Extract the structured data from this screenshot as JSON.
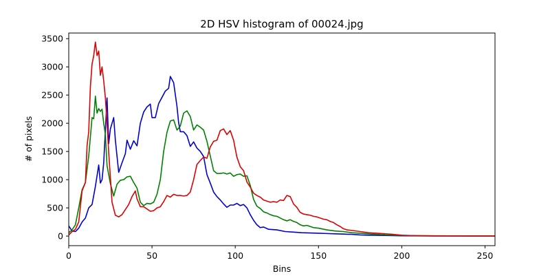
{
  "chart_data": {
    "type": "line",
    "title": "2D HSV histogram of 00024.jpg",
    "xlabel": "Bins",
    "ylabel": "# of pixels",
    "xlim": [
      0,
      256
    ],
    "ylim": [
      -170,
      3600
    ],
    "x_ticks": [
      0,
      50,
      100,
      150,
      200,
      250
    ],
    "y_ticks": [
      0,
      500,
      1000,
      1500,
      2000,
      2500,
      3000,
      3500
    ],
    "grid": false,
    "legend": "none",
    "series": [
      {
        "color": "#0000cc",
        "points": [
          [
            0,
            180
          ],
          [
            2,
            90
          ],
          [
            4,
            80
          ],
          [
            6,
            140
          ],
          [
            8,
            250
          ],
          [
            10,
            320
          ],
          [
            12,
            500
          ],
          [
            14,
            560
          ],
          [
            16,
            880
          ],
          [
            18,
            1260
          ],
          [
            19,
            940
          ],
          [
            20,
            1000
          ],
          [
            21,
            1300
          ],
          [
            23,
            2450
          ],
          [
            24,
            1640
          ],
          [
            25,
            1900
          ],
          [
            27,
            2100
          ],
          [
            28,
            1700
          ],
          [
            30,
            1130
          ],
          [
            32,
            1300
          ],
          [
            34,
            1460
          ],
          [
            35,
            1700
          ],
          [
            37,
            1540
          ],
          [
            39,
            1690
          ],
          [
            41,
            1600
          ],
          [
            43,
            2000
          ],
          [
            45,
            2200
          ],
          [
            47,
            2290
          ],
          [
            49,
            2340
          ],
          [
            50,
            2100
          ],
          [
            52,
            2100
          ],
          [
            54,
            2350
          ],
          [
            56,
            2460
          ],
          [
            58,
            2570
          ],
          [
            60,
            2620
          ],
          [
            61,
            2830
          ],
          [
            63,
            2720
          ],
          [
            65,
            2300
          ],
          [
            66,
            2010
          ],
          [
            67,
            1850
          ],
          [
            69,
            1850
          ],
          [
            71,
            1780
          ],
          [
            73,
            1590
          ],
          [
            75,
            1670
          ],
          [
            77,
            1560
          ],
          [
            79,
            1500
          ],
          [
            81,
            1410
          ],
          [
            83,
            1090
          ],
          [
            85,
            940
          ],
          [
            87,
            780
          ],
          [
            89,
            700
          ],
          [
            91,
            640
          ],
          [
            93,
            570
          ],
          [
            95,
            510
          ],
          [
            97,
            550
          ],
          [
            99,
            550
          ],
          [
            101,
            580
          ],
          [
            103,
            540
          ],
          [
            105,
            560
          ],
          [
            107,
            500
          ],
          [
            109,
            380
          ],
          [
            111,
            280
          ],
          [
            113,
            200
          ],
          [
            115,
            150
          ],
          [
            117,
            160
          ],
          [
            120,
            120
          ],
          [
            125,
            110
          ],
          [
            130,
            80
          ],
          [
            135,
            70
          ],
          [
            140,
            60
          ],
          [
            145,
            55
          ],
          [
            150,
            50
          ],
          [
            155,
            45
          ],
          [
            160,
            40
          ],
          [
            165,
            35
          ],
          [
            170,
            30
          ],
          [
            175,
            20
          ],
          [
            180,
            15
          ],
          [
            190,
            10
          ],
          [
            200,
            5
          ],
          [
            210,
            3
          ],
          [
            220,
            2
          ],
          [
            230,
            1
          ],
          [
            240,
            1
          ],
          [
            256,
            1
          ]
        ]
      },
      {
        "color": "#008000",
        "points": [
          [
            0,
            60
          ],
          [
            2,
            110
          ],
          [
            4,
            200
          ],
          [
            6,
            500
          ],
          [
            8,
            820
          ],
          [
            10,
            950
          ],
          [
            12,
            1420
          ],
          [
            14,
            2100
          ],
          [
            15,
            2080
          ],
          [
            16,
            2480
          ],
          [
            17,
            2180
          ],
          [
            18,
            2260
          ],
          [
            19,
            2210
          ],
          [
            20,
            2250
          ],
          [
            21,
            2000
          ],
          [
            22,
            1800
          ],
          [
            23,
            1250
          ],
          [
            25,
            930
          ],
          [
            27,
            710
          ],
          [
            29,
            920
          ],
          [
            31,
            990
          ],
          [
            33,
            1000
          ],
          [
            35,
            1050
          ],
          [
            37,
            1060
          ],
          [
            39,
            950
          ],
          [
            41,
            850
          ],
          [
            43,
            600
          ],
          [
            45,
            540
          ],
          [
            47,
            580
          ],
          [
            49,
            570
          ],
          [
            51,
            600
          ],
          [
            53,
            740
          ],
          [
            55,
            1000
          ],
          [
            57,
            1500
          ],
          [
            59,
            1840
          ],
          [
            61,
            2040
          ],
          [
            63,
            2060
          ],
          [
            65,
            1880
          ],
          [
            67,
            1950
          ],
          [
            69,
            2180
          ],
          [
            71,
            2220
          ],
          [
            73,
            2120
          ],
          [
            75,
            1880
          ],
          [
            77,
            1970
          ],
          [
            79,
            1930
          ],
          [
            81,
            1880
          ],
          [
            83,
            1680
          ],
          [
            85,
            1420
          ],
          [
            87,
            1160
          ],
          [
            89,
            1110
          ],
          [
            91,
            1110
          ],
          [
            93,
            1120
          ],
          [
            95,
            1100
          ],
          [
            97,
            1120
          ],
          [
            99,
            1060
          ],
          [
            101,
            1090
          ],
          [
            103,
            1100
          ],
          [
            105,
            1060
          ],
          [
            107,
            1070
          ],
          [
            109,
            900
          ],
          [
            111,
            650
          ],
          [
            113,
            530
          ],
          [
            115,
            490
          ],
          [
            117,
            430
          ],
          [
            119,
            410
          ],
          [
            121,
            380
          ],
          [
            123,
            360
          ],
          [
            125,
            350
          ],
          [
            127,
            320
          ],
          [
            129,
            290
          ],
          [
            131,
            270
          ],
          [
            133,
            290
          ],
          [
            135,
            260
          ],
          [
            137,
            240
          ],
          [
            139,
            200
          ],
          [
            141,
            180
          ],
          [
            143,
            190
          ],
          [
            145,
            170
          ],
          [
            147,
            150
          ],
          [
            150,
            140
          ],
          [
            155,
            110
          ],
          [
            160,
            90
          ],
          [
            165,
            80
          ],
          [
            170,
            60
          ],
          [
            175,
            50
          ],
          [
            180,
            40
          ],
          [
            190,
            20
          ],
          [
            200,
            10
          ],
          [
            210,
            5
          ],
          [
            220,
            3
          ],
          [
            256,
            1
          ]
        ]
      },
      {
        "color": "#dd0000",
        "points": [
          [
            0,
            20
          ],
          [
            2,
            80
          ],
          [
            4,
            120
          ],
          [
            6,
            250
          ],
          [
            8,
            800
          ],
          [
            10,
            950
          ],
          [
            11,
            1600
          ],
          [
            12,
            1850
          ],
          [
            13,
            2650
          ],
          [
            14,
            3050
          ],
          [
            15,
            3200
          ],
          [
            16,
            3440
          ],
          [
            17,
            3200
          ],
          [
            18,
            3280
          ],
          [
            19,
            2850
          ],
          [
            20,
            3000
          ],
          [
            21,
            2750
          ],
          [
            22,
            2450
          ],
          [
            23,
            2000
          ],
          [
            24,
            1480
          ],
          [
            26,
            600
          ],
          [
            28,
            370
          ],
          [
            30,
            340
          ],
          [
            32,
            380
          ],
          [
            34,
            470
          ],
          [
            36,
            560
          ],
          [
            38,
            700
          ],
          [
            40,
            800
          ],
          [
            41,
            660
          ],
          [
            43,
            520
          ],
          [
            45,
            520
          ],
          [
            47,
            480
          ],
          [
            49,
            440
          ],
          [
            51,
            450
          ],
          [
            53,
            500
          ],
          [
            55,
            520
          ],
          [
            57,
            610
          ],
          [
            59,
            720
          ],
          [
            61,
            690
          ],
          [
            63,
            740
          ],
          [
            65,
            720
          ],
          [
            67,
            720
          ],
          [
            69,
            710
          ],
          [
            71,
            720
          ],
          [
            73,
            780
          ],
          [
            75,
            1000
          ],
          [
            77,
            1270
          ],
          [
            79,
            1340
          ],
          [
            81,
            1400
          ],
          [
            83,
            1380
          ],
          [
            85,
            1580
          ],
          [
            87,
            1680
          ],
          [
            89,
            1700
          ],
          [
            91,
            1870
          ],
          [
            93,
            1900
          ],
          [
            95,
            1800
          ],
          [
            97,
            1870
          ],
          [
            99,
            1700
          ],
          [
            101,
            1400
          ],
          [
            103,
            1230
          ],
          [
            105,
            1160
          ],
          [
            107,
            960
          ],
          [
            109,
            870
          ],
          [
            111,
            760
          ],
          [
            113,
            720
          ],
          [
            115,
            690
          ],
          [
            117,
            640
          ],
          [
            119,
            620
          ],
          [
            121,
            600
          ],
          [
            123,
            610
          ],
          [
            125,
            600
          ],
          [
            127,
            640
          ],
          [
            129,
            630
          ],
          [
            131,
            720
          ],
          [
            133,
            700
          ],
          [
            135,
            570
          ],
          [
            137,
            510
          ],
          [
            139,
            420
          ],
          [
            141,
            390
          ],
          [
            143,
            380
          ],
          [
            145,
            370
          ],
          [
            147,
            350
          ],
          [
            149,
            340
          ],
          [
            151,
            320
          ],
          [
            153,
            300
          ],
          [
            155,
            290
          ],
          [
            157,
            260
          ],
          [
            159,
            240
          ],
          [
            161,
            200
          ],
          [
            163,
            170
          ],
          [
            165,
            130
          ],
          [
            167,
            110
          ],
          [
            170,
            100
          ],
          [
            175,
            80
          ],
          [
            180,
            60
          ],
          [
            185,
            50
          ],
          [
            190,
            40
          ],
          [
            195,
            30
          ],
          [
            200,
            15
          ],
          [
            205,
            10
          ],
          [
            210,
            8
          ],
          [
            220,
            5
          ],
          [
            230,
            3
          ],
          [
            240,
            2
          ],
          [
            256,
            1
          ]
        ]
      }
    ]
  }
}
